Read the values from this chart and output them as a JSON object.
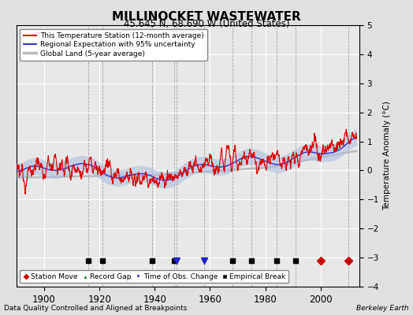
{
  "title": "MILLINOCKET WASTEWATER",
  "subtitle": "45.645 N, 68.690 W (United States)",
  "ylabel": "Temperature Anomaly (°C)",
  "footer_left": "Data Quality Controlled and Aligned at Breakpoints",
  "footer_right": "Berkeley Earth",
  "ylim": [
    -4,
    5
  ],
  "xlim": [
    1890,
    2014
  ],
  "yticks": [
    -4,
    -3,
    -2,
    -1,
    0,
    1,
    2,
    3,
    4,
    5
  ],
  "xticks": [
    1900,
    1920,
    1940,
    1960,
    1980,
    2000
  ],
  "bg_color": "#e0e0e0",
  "plot_bg_color": "#e8e8e8",
  "station_moves": [
    2000,
    2010
  ],
  "record_gaps": [],
  "obs_changes": [
    1948,
    1958
  ],
  "empirical_breaks": [
    1916,
    1921,
    1939,
    1947,
    1968,
    1975,
    1984,
    1991
  ],
  "marker_y": -3.1,
  "red_line_color": "#dd0000",
  "blue_line_color": "#3333cc",
  "blue_band_color": "#aabbdd",
  "gray_line_color": "#bbbbbb",
  "grid_color": "#ffffff",
  "white_bg": "#ffffff"
}
